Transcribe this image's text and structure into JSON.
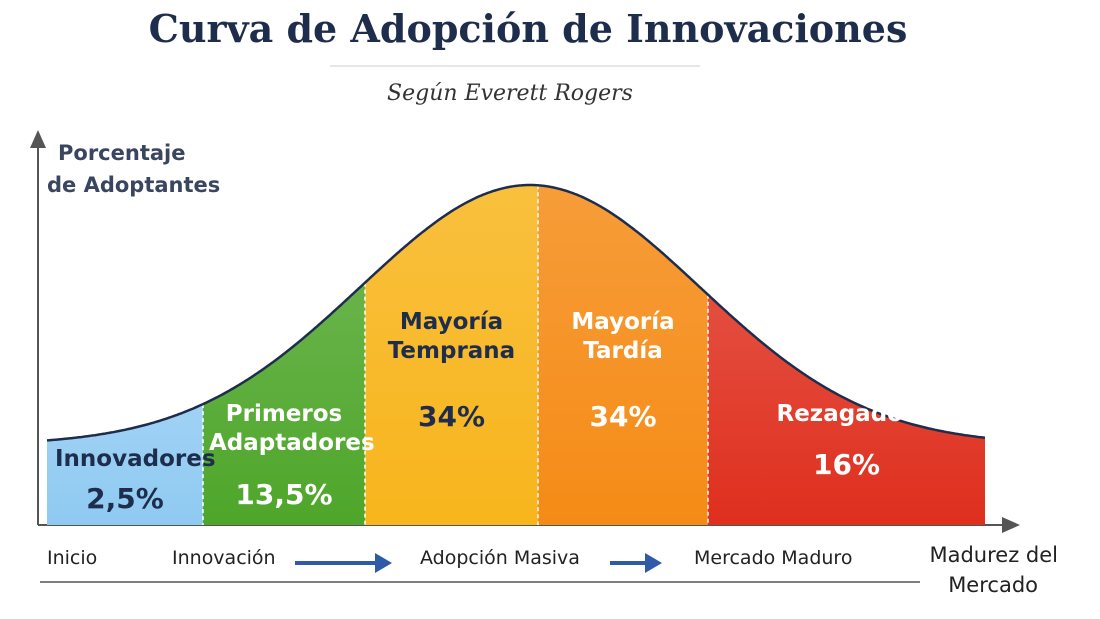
{
  "chart_data": {
    "type": "adoption-curve",
    "title": "Curva de Adopción de Innovaciones",
    "subtitle": "Según Everett Rogers",
    "y_label": [
      "Porcentaje",
      "de Adoptantes"
    ],
    "x_label": [
      "Madurez del",
      "Mercado"
    ],
    "categories": [
      "Innovadores",
      "Primeros Adaptadores",
      "Mayoría Temprana",
      "Mayoría Tardía",
      "Rezagados"
    ],
    "values": [
      2.5,
      13.5,
      34,
      34,
      16
    ],
    "value_labels": [
      "2,5%",
      "13,5%",
      "34%",
      "34%",
      "16%"
    ],
    "colors": [
      "#8fcaf2",
      "#4ea62a",
      "#f8b51c",
      "#f58b16",
      "#df2f1e"
    ],
    "stages": [
      "Inicio",
      "Innovación",
      "Adopción Masiva",
      "Mercado Maduro"
    ]
  }
}
